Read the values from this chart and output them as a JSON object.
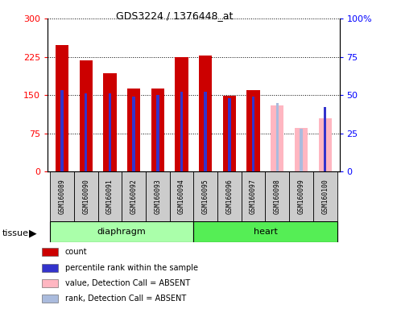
{
  "title": "GDS3224 / 1376448_at",
  "samples": [
    "GSM160089",
    "GSM160090",
    "GSM160091",
    "GSM160092",
    "GSM160093",
    "GSM160094",
    "GSM160095",
    "GSM160096",
    "GSM160097",
    "GSM160098",
    "GSM160099",
    "GSM160100"
  ],
  "count_values": [
    248,
    218,
    193,
    162,
    163,
    225,
    227,
    149,
    160,
    null,
    null,
    null
  ],
  "percentile_rank_values": [
    53,
    51,
    51,
    49,
    50,
    52,
    52,
    48,
    49,
    null,
    null,
    42
  ],
  "absent_value_values": [
    null,
    null,
    null,
    null,
    null,
    null,
    null,
    null,
    null,
    130,
    85,
    105
  ],
  "absent_rank_values": [
    null,
    null,
    null,
    null,
    null,
    null,
    null,
    null,
    null,
    45,
    28,
    null
  ],
  "red_color": "#CC0000",
  "pink_color": "#FFB6C1",
  "blue_color": "#3333CC",
  "lavender_color": "#AABBDD",
  "ylim_left": [
    0,
    300
  ],
  "ylim_right": [
    0,
    100
  ],
  "yticks_left": [
    0,
    75,
    150,
    225,
    300
  ],
  "yticks_right": [
    0,
    25,
    50,
    75,
    100
  ],
  "diaphragm_color": "#AAFFAA",
  "heart_color": "#55EE55",
  "gray_color": "#CCCCCC",
  "legend_entries": [
    {
      "label": "count",
      "color": "#CC0000"
    },
    {
      "label": "percentile rank within the sample",
      "color": "#3333CC"
    },
    {
      "label": "value, Detection Call = ABSENT",
      "color": "#FFB6C1"
    },
    {
      "label": "rank, Detection Call = ABSENT",
      "color": "#AABBDD"
    }
  ]
}
